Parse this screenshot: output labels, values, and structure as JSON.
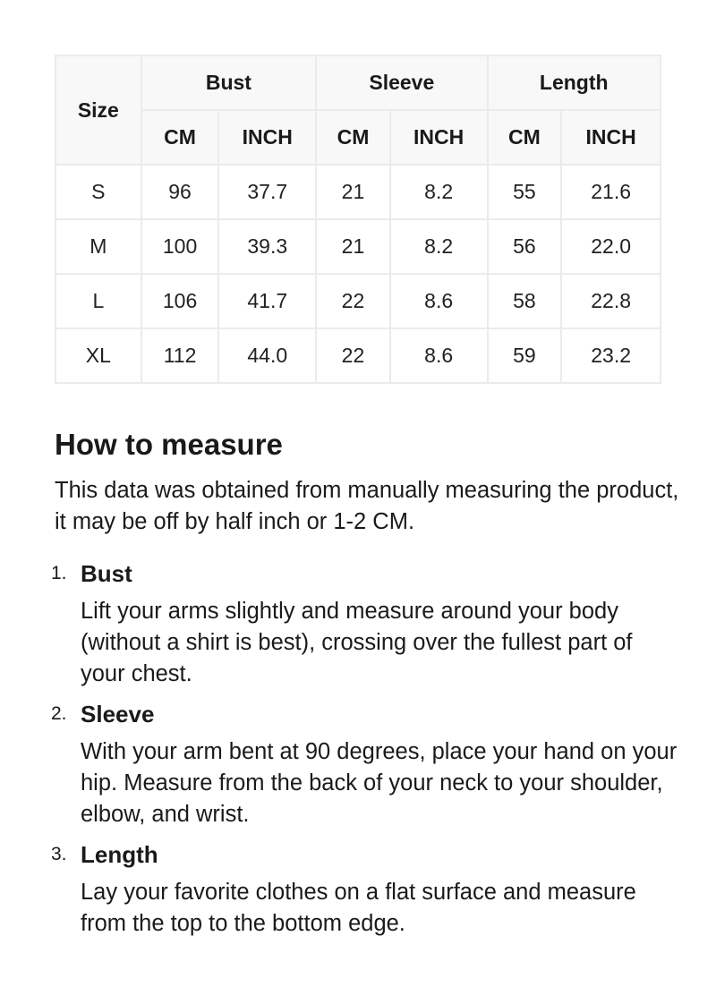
{
  "table": {
    "size_label": "Size",
    "groups": [
      "Bust",
      "Sleeve",
      "Length"
    ],
    "units": [
      "CM",
      "INCH",
      "CM",
      "INCH",
      "CM",
      "INCH"
    ],
    "rows": [
      [
        "S",
        "96",
        "37.7",
        "21",
        "8.2",
        "55",
        "21.6"
      ],
      [
        "M",
        "100",
        "39.3",
        "21",
        "8.2",
        "56",
        "22.0"
      ],
      [
        "L",
        "106",
        "41.7",
        "22",
        "8.6",
        "58",
        "22.8"
      ],
      [
        "XL",
        "112",
        "44.0",
        "22",
        "8.6",
        "59",
        "23.2"
      ]
    ]
  },
  "measure": {
    "heading": "How to measure",
    "intro": "This data was obtained from manually measuring the product, it may be off by half inch or 1-2 CM.",
    "steps": [
      {
        "num": "1.",
        "title": "Bust",
        "desc": "Lift your arms slightly and measure around your body (without a shirt is best), crossing over the fullest part of your chest."
      },
      {
        "num": "2.",
        "title": "Sleeve",
        "desc": "With your arm bent at 90 degrees, place your hand on your hip. Measure from the back of your neck to your shoulder, elbow, and wrist."
      },
      {
        "num": "3.",
        "title": "Length",
        "desc": "Lay your favorite clothes on a flat surface and measure from the top to the bottom edge."
      }
    ]
  }
}
